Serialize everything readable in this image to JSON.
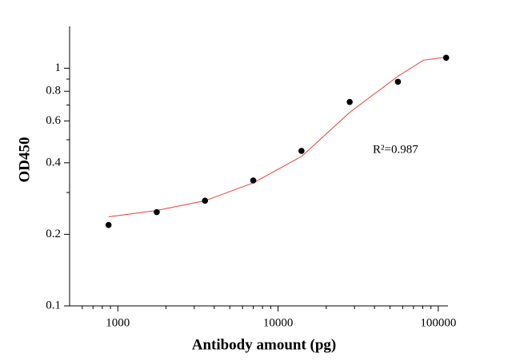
{
  "chart_data": {
    "type": "scatter",
    "xlabel": "Antibody amount (pg)",
    "ylabel": "OD450",
    "annotation": "R²=0.987",
    "x": [
      875,
      1750,
      3500,
      7000,
      14000,
      28000,
      56000,
      112000
    ],
    "values": [
      0.219,
      0.248,
      0.277,
      0.337,
      0.449,
      0.721,
      0.877,
      1.107
    ],
    "color": "#000000",
    "fit": {
      "x": [
        875,
        1750,
        3500,
        7000,
        14000,
        28000,
        56000,
        81000,
        112000
      ],
      "values": [
        0.237,
        0.252,
        0.277,
        0.329,
        0.425,
        0.652,
        0.925,
        1.081,
        1.114
      ],
      "color": "#e04040"
    },
    "xscale": "log",
    "yscale": "log",
    "xlim": [
      500,
      115000
    ],
    "ylim": [
      0.1,
      1.5
    ],
    "xticks": [
      1000,
      10000,
      100000
    ],
    "xminorticks": [
      600,
      700,
      800,
      900,
      2000,
      3000,
      4000,
      5000,
      6000,
      7000,
      8000,
      9000,
      20000,
      30000,
      40000,
      50000,
      60000,
      70000,
      80000,
      90000
    ],
    "yticks": [
      0.1,
      0.2,
      0.4,
      0.6,
      0.8,
      1
    ],
    "yminorticks": [
      0.3,
      0.5,
      0.7,
      0.9
    ]
  }
}
